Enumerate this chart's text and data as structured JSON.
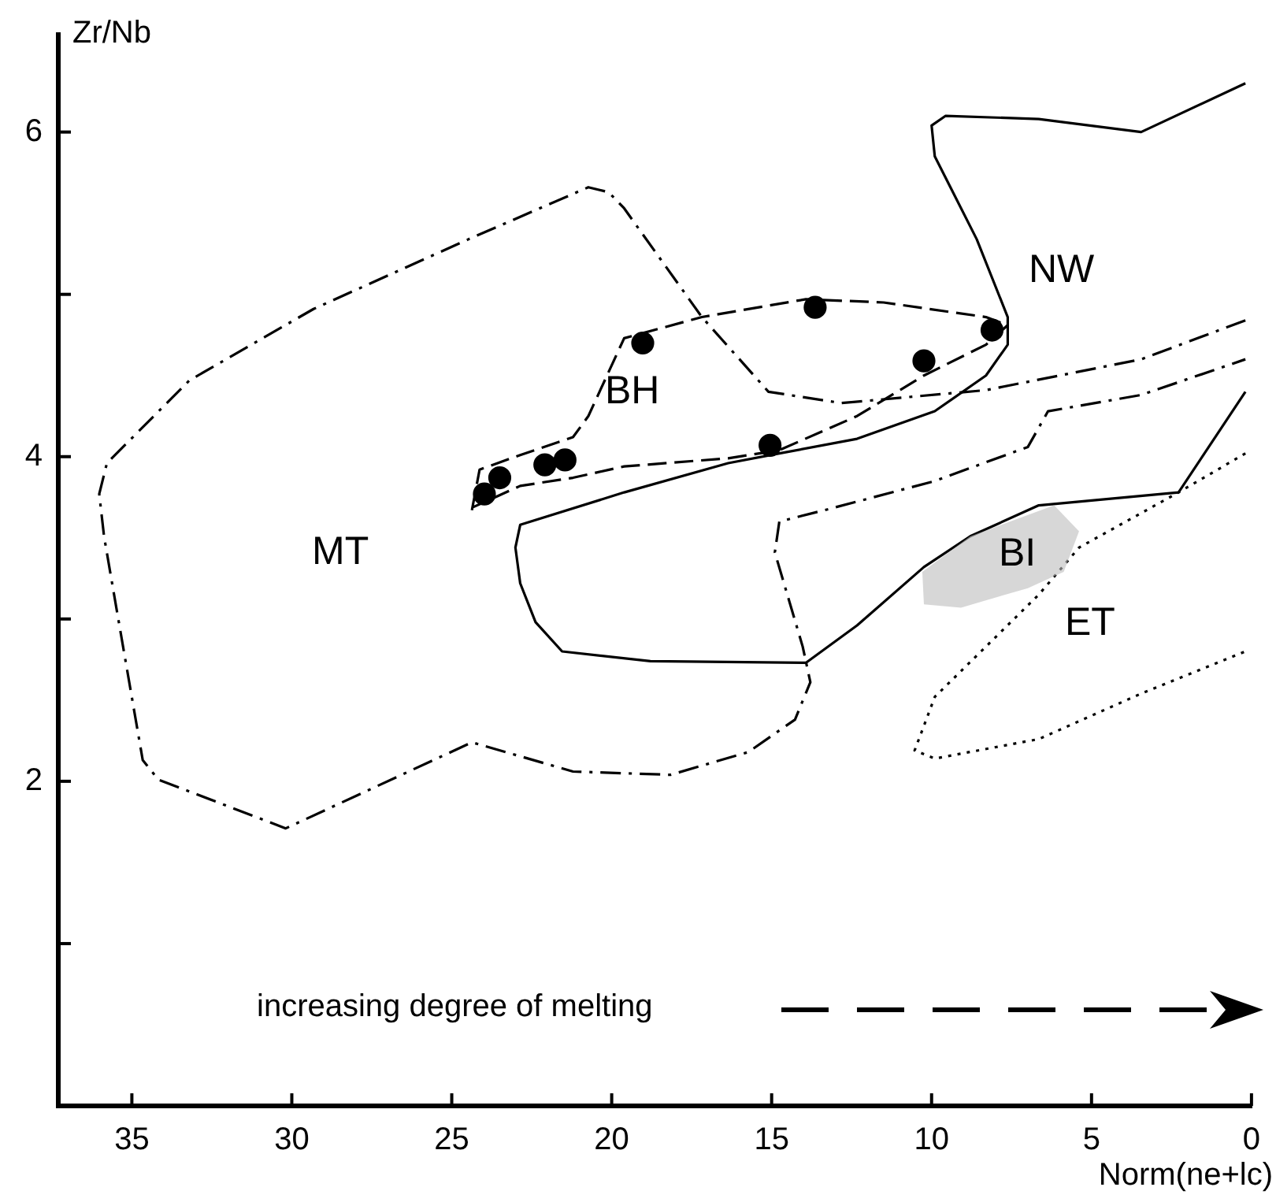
{
  "chart_data": {
    "type": "scatter",
    "xlabel": "Norm(ne+lc)",
    "ylabel": "Zr/Nb",
    "xlim": [
      37.3,
      0
    ],
    "xticks": [
      35,
      30,
      25,
      20,
      15,
      10,
      5,
      0
    ],
    "ylim": [
      0,
      6.6
    ],
    "yticks": [
      {
        "value": 1,
        "label": null
      },
      2,
      {
        "value": 3,
        "label": null
      },
      4,
      {
        "value": 5,
        "label": null
      },
      6
    ],
    "marker": "circle",
    "series": [
      {
        "type": "line",
        "color": "#000000",
        "line_style": "dashdot",
        "marker": "none",
        "x": [
          0.19,
          3.45,
          8.3,
          12.82,
          15.1,
          17.18,
          19.61,
          20.1,
          20.73,
          24.47,
          29.32,
          33.2,
          35.78,
          36.02,
          35.87,
          35.53,
          34.66,
          34.17,
          30.19,
          24.37,
          21.21,
          18.16,
          15.73,
          14.27,
          13.79,
          14.03,
          14.9,
          14.76,
          13.16,
          9.9,
          6.99,
          6.36,
          3.45,
          0.19
        ],
        "values": [
          4.84,
          4.6,
          4.41,
          4.33,
          4.4,
          4.86,
          5.53,
          5.63,
          5.66,
          5.34,
          4.91,
          4.47,
          3.96,
          3.77,
          3.51,
          3.12,
          2.13,
          2.01,
          1.71,
          2.24,
          2.06,
          2.04,
          2.18,
          2.38,
          2.61,
          2.83,
          3.41,
          3.6,
          3.68,
          3.85,
          4.06,
          4.28,
          4.38,
          4.6
        ]
      },
      {
        "type": "line",
        "color": "#000000",
        "line_style": "dashed",
        "marker": "none",
        "x": [
          24.37,
          24.13,
          22.86,
          21.21,
          20.73,
          19.61,
          17.18,
          13.93,
          11.5,
          8.3,
          7.62,
          8.3,
          10.24,
          12.33,
          14.76,
          16.36,
          19.61,
          21.21,
          22.86,
          24.32
        ],
        "values": [
          3.67,
          3.92,
          4.01,
          4.12,
          4.25,
          4.73,
          4.86,
          4.97,
          4.95,
          4.86,
          4.81,
          4.69,
          4.5,
          4.25,
          4.04,
          3.99,
          3.94,
          3.87,
          3.82,
          3.69
        ]
      },
      {
        "type": "line",
        "color": "#000000",
        "line_style": "solid",
        "marker": "none",
        "x": [
          0.19,
          3.45,
          6.65,
          9.56,
          10.0,
          9.9,
          8.59,
          7.62,
          7.62,
          8.3,
          9.9,
          12.33,
          14.76,
          16.36,
          19.61,
          22.86,
          23.01,
          22.86,
          22.38,
          21.55,
          18.79,
          13.93,
          12.33,
          10.24,
          8.79,
          6.65,
          2.28,
          0.19
        ],
        "values": [
          6.3,
          6.0,
          6.08,
          6.1,
          6.04,
          5.85,
          5.34,
          4.86,
          4.69,
          4.5,
          4.28,
          4.11,
          4.02,
          3.96,
          3.78,
          3.58,
          3.44,
          3.22,
          2.98,
          2.8,
          2.74,
          2.73,
          2.96,
          3.32,
          3.51,
          3.7,
          3.78,
          4.4
        ]
      },
      {
        "type": "line",
        "color": "#000000",
        "line_style": "dotted",
        "marker": "none",
        "x": [
          0.19,
          2.28,
          5.39,
          6.65,
          8.3,
          9.9,
          10.53,
          9.9,
          6.65,
          3.45,
          0.19
        ],
        "values": [
          4.02,
          3.78,
          3.44,
          3.15,
          2.83,
          2.52,
          2.19,
          2.14,
          2.26,
          2.54,
          2.8
        ]
      },
      {
        "type": "area",
        "color": "#bdbdbd",
        "marker": "none",
        "x": [
          10.29,
          8.79,
          6.17,
          5.39,
          5.87,
          6.99,
          9.08,
          10.24,
          10.29
        ],
        "values": [
          3.29,
          3.51,
          3.7,
          3.54,
          3.29,
          3.19,
          3.07,
          3.09,
          3.29
        ]
      },
      {
        "type": "scatter",
        "color": "#000000",
        "x": [
          23.98,
          23.5,
          22.09,
          21.46,
          19.03,
          15.05,
          13.64,
          10.24,
          8.11
        ],
        "values": [
          3.77,
          3.87,
          3.95,
          3.98,
          4.7,
          4.07,
          4.92,
          4.59,
          4.78
        ]
      }
    ],
    "annotations": [
      "increasing degree of melting",
      "MT",
      "BH",
      "NW",
      "BI",
      "ET"
    ]
  }
}
